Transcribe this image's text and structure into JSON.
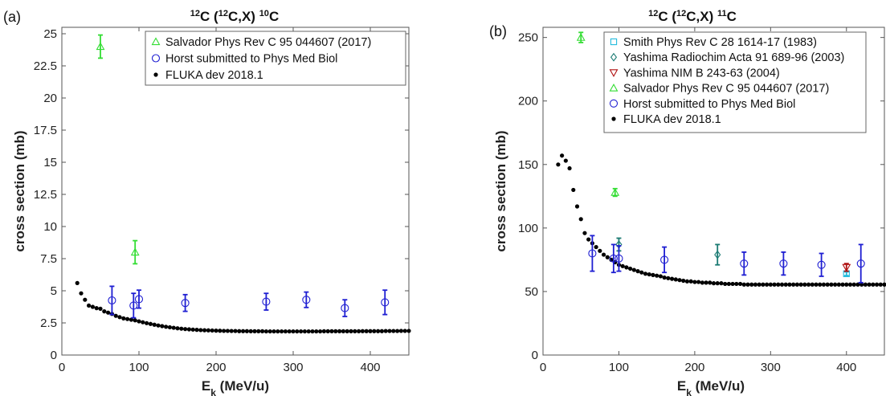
{
  "colors": {
    "fluka": "#000000",
    "horst": "#1e1ed2",
    "salvador": "#33dd33",
    "smith": "#22bbdd",
    "yashima_ra": "#1a7a72",
    "yashima_nim": "#b01212"
  },
  "chart_data": [
    {
      "type": "scatter",
      "panel": "(a)",
      "title_parts": {
        "m1": "12",
        "a": "C (",
        "m2": "12",
        "b": "C,X) ",
        "m3": "10",
        "c": "C"
      },
      "xlabel_main": "E",
      "xlabel_sub": "k",
      "xlabel_rest": " (MeV/u)",
      "ylabel": "cross section (mb)",
      "xlim": [
        0,
        450
      ],
      "ylim": [
        0,
        25.5
      ],
      "xticks": [
        0,
        100,
        200,
        300,
        400
      ],
      "xtick_labels": [
        "0",
        "100",
        "200",
        "300",
        "400"
      ],
      "yticks": [
        0,
        2.5,
        5,
        7.5,
        10,
        12.5,
        15,
        17.5,
        20,
        22.5,
        25
      ],
      "ytick_labels": [
        "0",
        "2.5",
        "5",
        "7.5",
        "10",
        "12.5",
        "15",
        "17.5",
        "20",
        "22.5",
        "25"
      ],
      "grid": false,
      "legend_position": "top-right",
      "series": [
        {
          "name": "Salvador Phys Rev C 95 044607 (2017)",
          "marker": "triangle",
          "color_key": "salvador",
          "x": [
            50,
            95
          ],
          "y": [
            24.0,
            8.0
          ],
          "yerr": [
            0.9,
            0.9
          ]
        },
        {
          "name": "Horst submitted to Phys Med Biol",
          "marker": "circle",
          "color_key": "horst",
          "x": [
            65,
            93,
            100,
            160,
            265,
            317,
            367,
            419
          ],
          "y": [
            4.25,
            3.85,
            4.35,
            4.05,
            4.15,
            4.3,
            3.65,
            4.1
          ],
          "yerr": [
            1.1,
            0.95,
            0.7,
            0.65,
            0.65,
            0.6,
            0.65,
            0.95
          ]
        },
        {
          "name": "FLUKA dev 2018.1",
          "marker": "dot",
          "color_key": "fluka",
          "x": [
            20,
            25,
            30,
            35,
            40,
            45,
            50,
            55,
            60,
            65,
            70,
            75,
            80,
            85,
            90,
            95,
            100,
            105,
            110,
            115,
            120,
            125,
            130,
            135,
            140,
            145,
            150,
            155,
            160,
            165,
            170,
            175,
            180,
            185,
            190,
            195,
            200,
            205,
            210,
            215,
            220,
            225,
            230,
            235,
            240,
            245,
            250,
            255,
            260,
            265,
            270,
            275,
            280,
            285,
            290,
            295,
            300,
            305,
            310,
            315,
            320,
            325,
            330,
            335,
            340,
            345,
            350,
            355,
            360,
            365,
            370,
            375,
            380,
            385,
            390,
            395,
            400,
            405,
            410,
            415,
            420,
            425,
            430,
            435,
            440,
            445,
            450
          ],
          "y": [
            5.6,
            4.8,
            4.3,
            3.85,
            3.75,
            3.65,
            3.6,
            3.4,
            3.3,
            3.2,
            3.05,
            2.95,
            2.85,
            2.8,
            2.75,
            2.7,
            2.62,
            2.55,
            2.48,
            2.42,
            2.36,
            2.3,
            2.25,
            2.2,
            2.16,
            2.12,
            2.08,
            2.05,
            2.02,
            2.0,
            1.98,
            1.96,
            1.94,
            1.93,
            1.92,
            1.91,
            1.9,
            1.89,
            1.88,
            1.88,
            1.87,
            1.87,
            1.86,
            1.86,
            1.86,
            1.85,
            1.85,
            1.85,
            1.85,
            1.84,
            1.84,
            1.84,
            1.84,
            1.84,
            1.84,
            1.84,
            1.84,
            1.84,
            1.84,
            1.84,
            1.84,
            1.84,
            1.84,
            1.84,
            1.85,
            1.85,
            1.85,
            1.85,
            1.85,
            1.85,
            1.85,
            1.85,
            1.85,
            1.85,
            1.86,
            1.86,
            1.86,
            1.86,
            1.86,
            1.86,
            1.87,
            1.87,
            1.87,
            1.87,
            1.88,
            1.88,
            1.88
          ]
        }
      ]
    },
    {
      "type": "scatter",
      "panel": "(b)",
      "title_parts": {
        "m1": "12",
        "a": "C (",
        "m2": "12",
        "b": "C,X) ",
        "m3": "11",
        "c": "C"
      },
      "xlabel_main": "E",
      "xlabel_sub": "k",
      "xlabel_rest": " (MeV/u)",
      "ylabel": "cross section (mb)",
      "xlim": [
        0,
        450
      ],
      "ylim": [
        0,
        258
      ],
      "xticks": [
        0,
        100,
        200,
        300,
        400
      ],
      "xtick_labels": [
        "0",
        "100",
        "200",
        "300",
        "400"
      ],
      "yticks": [
        0,
        50,
        100,
        150,
        200,
        250
      ],
      "ytick_labels": [
        "0",
        "50",
        "100",
        "150",
        "200",
        "250"
      ],
      "grid": false,
      "legend_position": "top-right",
      "series": [
        {
          "name": "Smith Phys Rev C 28 1614-17 (1983)",
          "marker": "square",
          "color_key": "smith",
          "x": [
            400
          ],
          "y": [
            64
          ],
          "yerr": [
            1.5
          ]
        },
        {
          "name": "Yashima Radiochim Acta 91 689-96 (2003)",
          "marker": "diamond",
          "color_key": "yashima_ra",
          "x": [
            100,
            230
          ],
          "y": [
            87,
            79
          ],
          "yerr": [
            5,
            8
          ]
        },
        {
          "name": "Yashima NIM B 243-63 (2004)",
          "marker": "triangle-down",
          "color_key": "yashima_nim",
          "x": [
            400
          ],
          "y": [
            69
          ],
          "yerr": [
            3
          ]
        },
        {
          "name": "Salvador Phys Rev C 95 044607 (2017)",
          "marker": "triangle",
          "color_key": "salvador",
          "x": [
            50,
            95
          ],
          "y": [
            250,
            128
          ],
          "yerr": [
            4,
            3
          ]
        },
        {
          "name": "Horst submitted to Phys Med Biol",
          "marker": "circle",
          "color_key": "horst",
          "x": [
            65,
            93,
            100,
            160,
            265,
            317,
            367,
            419
          ],
          "y": [
            80,
            76,
            76,
            75,
            72,
            72,
            71,
            72
          ],
          "yerr": [
            14,
            11,
            10,
            10,
            9,
            9,
            9,
            15
          ]
        },
        {
          "name": "FLUKA dev 2018.1",
          "marker": "dot",
          "color_key": "fluka",
          "x": [
            20,
            25,
            30,
            35,
            40,
            45,
            50,
            55,
            60,
            65,
            70,
            75,
            80,
            85,
            90,
            95,
            100,
            105,
            110,
            115,
            120,
            125,
            130,
            135,
            140,
            145,
            150,
            155,
            160,
            165,
            170,
            175,
            180,
            185,
            190,
            195,
            200,
            205,
            210,
            215,
            220,
            225,
            230,
            235,
            240,
            245,
            250,
            255,
            260,
            265,
            270,
            275,
            280,
            285,
            290,
            295,
            300,
            305,
            310,
            315,
            320,
            325,
            330,
            335,
            340,
            345,
            350,
            355,
            360,
            365,
            370,
            375,
            380,
            385,
            390,
            395,
            400,
            405,
            410,
            415,
            420,
            425,
            430,
            435,
            440,
            445,
            450
          ],
          "y": [
            150,
            157,
            153,
            147,
            130,
            117,
            107,
            96,
            91,
            88,
            85,
            82,
            79,
            77,
            75,
            73,
            71,
            70,
            69,
            68,
            67,
            66,
            65,
            64,
            63.5,
            63,
            62.5,
            62,
            61,
            60.5,
            60,
            59.5,
            59,
            58.5,
            58,
            58,
            57.5,
            57.5,
            57,
            57,
            57,
            56.5,
            56.5,
            56.5,
            56,
            56,
            56,
            56,
            56,
            55.5,
            55.5,
            55.5,
            55.5,
            55.5,
            55.5,
            55.5,
            55.5,
            55.5,
            55.5,
            55.5,
            55.5,
            55.5,
            55.5,
            55.5,
            55.5,
            55.5,
            55.5,
            55.5,
            55.5,
            55.5,
            55.5,
            55.5,
            55.5,
            55.5,
            55.5,
            55.5,
            55.5,
            55.5,
            55.5,
            55.5,
            55.5,
            55.5,
            55.5,
            55.5,
            55.5,
            55.5,
            55.5
          ]
        }
      ]
    }
  ]
}
